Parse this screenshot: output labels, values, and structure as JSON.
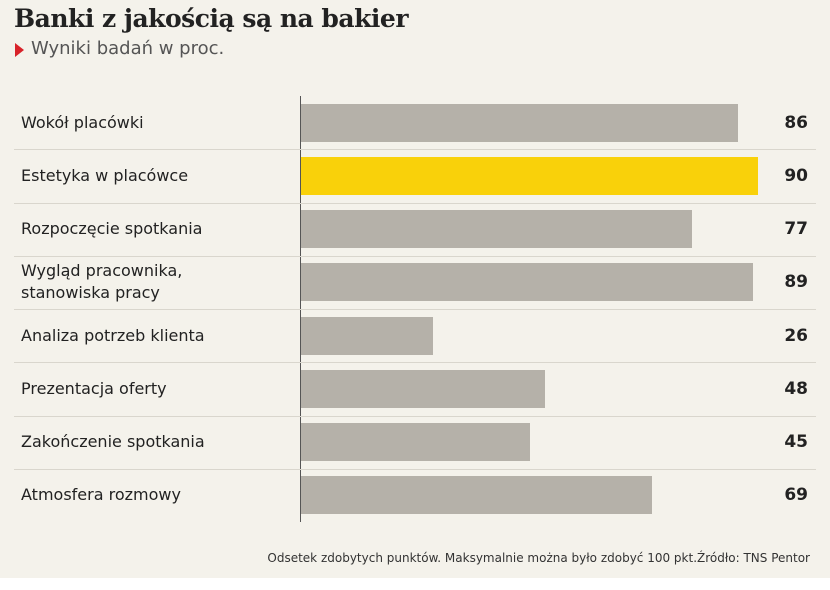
{
  "chart_data": {
    "type": "bar",
    "orientation": "horizontal",
    "title": "Banki z jakością są na bakier",
    "subtitle": "Wyniki badań w proc.",
    "categories": [
      "Wokół placówki",
      "Estetyka w placówce",
      "Rozpoczęcie spotkania",
      "Wygląd pracownika,\nstanowiska pracy",
      "Analiza potrzeb klienta",
      "Prezentacja oferty",
      "Zakończenie spotkania",
      "Atmosfera rozmowy"
    ],
    "values": [
      86,
      90,
      77,
      89,
      26,
      48,
      45,
      69
    ],
    "colors": [
      "#b5b1a9",
      "#f9d10a",
      "#b5b1a9",
      "#b5b1a9",
      "#b5b1a9",
      "#b5b1a9",
      "#b5b1a9",
      "#b5b1a9"
    ],
    "xlim": [
      0,
      100
    ],
    "footnote": "Odsetek zdobytych punktów. Maksymalnie można było zdobyć 100 pkt.Źródło: TNS Pentor"
  }
}
